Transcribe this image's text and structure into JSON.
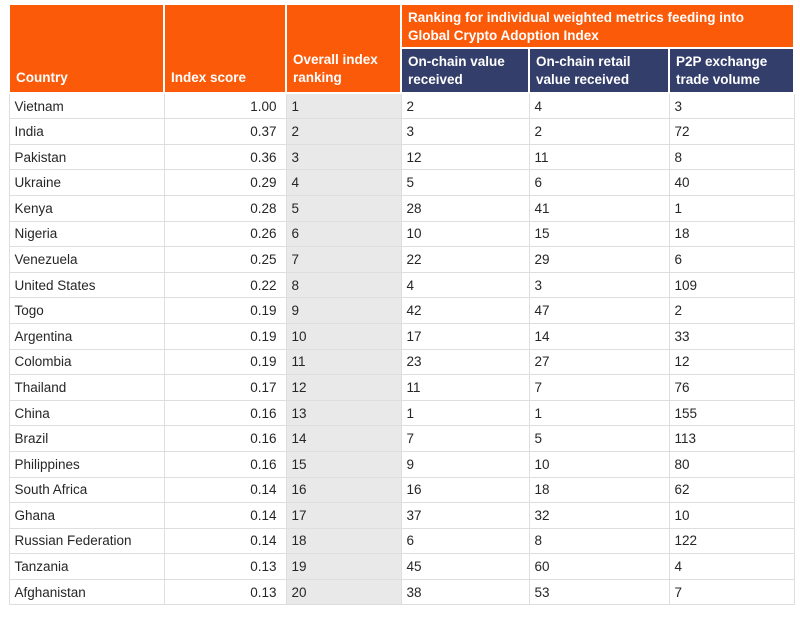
{
  "colors": {
    "orange": "#fb5a09",
    "navy": "#333e6b",
    "rank_col_bg": "#e9e9e9",
    "grid": "#dedede",
    "text": "#262626",
    "header_text": "#ffffff"
  },
  "chart_data": {
    "type": "table",
    "title": "Ranking for individual weighted metrics feeding into Global Crypto Adoption Index",
    "columns": [
      "Country",
      "Index score",
      "Overall index ranking",
      "On-chain value received",
      "On-chain retail value received",
      "P2P exchange trade volume"
    ],
    "rows": [
      [
        "Vietnam",
        "1.00",
        "1",
        "2",
        "4",
        "3"
      ],
      [
        "India",
        "0.37",
        "2",
        "3",
        "2",
        "72"
      ],
      [
        "Pakistan",
        "0.36",
        "3",
        "12",
        "11",
        "8"
      ],
      [
        "Ukraine",
        "0.29",
        "4",
        "5",
        "6",
        "40"
      ],
      [
        "Kenya",
        "0.28",
        "5",
        "28",
        "41",
        "1"
      ],
      [
        "Nigeria",
        "0.26",
        "6",
        "10",
        "15",
        "18"
      ],
      [
        "Venezuela",
        "0.25",
        "7",
        "22",
        "29",
        "6"
      ],
      [
        "United States",
        "0.22",
        "8",
        "4",
        "3",
        "109"
      ],
      [
        "Togo",
        "0.19",
        "9",
        "42",
        "47",
        "2"
      ],
      [
        "Argentina",
        "0.19",
        "10",
        "17",
        "14",
        "33"
      ],
      [
        "Colombia",
        "0.19",
        "11",
        "23",
        "27",
        "12"
      ],
      [
        "Thailand",
        "0.17",
        "12",
        "11",
        "7",
        "76"
      ],
      [
        "China",
        "0.16",
        "13",
        "1",
        "1",
        "155"
      ],
      [
        "Brazil",
        "0.16",
        "14",
        "7",
        "5",
        "113"
      ],
      [
        "Philippines",
        "0.16",
        "15",
        "9",
        "10",
        "80"
      ],
      [
        "South Africa",
        "0.14",
        "16",
        "16",
        "18",
        "62"
      ],
      [
        "Ghana",
        "0.14",
        "17",
        "37",
        "32",
        "10"
      ],
      [
        "Russian Federation",
        "0.14",
        "18",
        "6",
        "8",
        "122"
      ],
      [
        "Tanzania",
        "0.13",
        "19",
        "45",
        "60",
        "4"
      ],
      [
        "Afghanistan",
        "0.13",
        "20",
        "38",
        "53",
        "7"
      ]
    ]
  }
}
